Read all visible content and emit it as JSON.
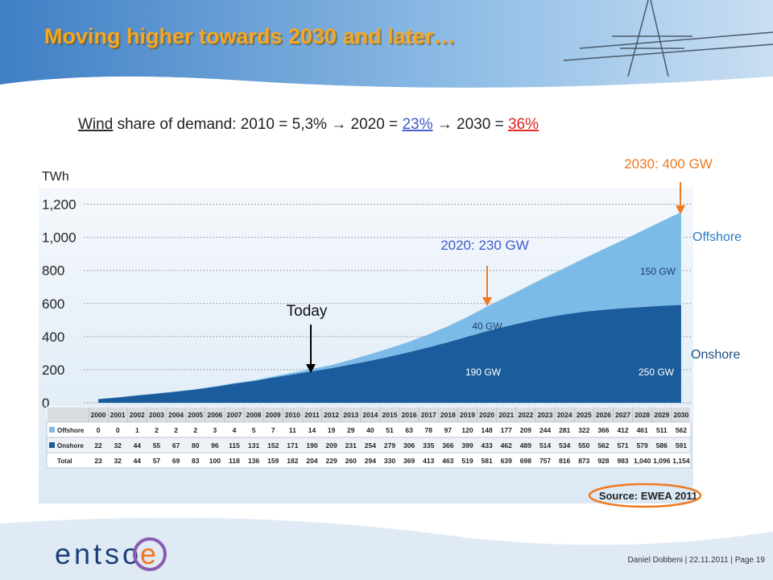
{
  "header": {
    "title": "Moving higher towards 2030 and later…"
  },
  "subtitle": [
    "Wind",
    " share of demand: 2010 = 5,3% ",
    "→",
    " 2020 = ",
    "23%",
    " ",
    "→",
    " 2030 = ",
    "36%"
  ],
  "chart_data": {
    "type": "stacked_area",
    "y_label": "TWh",
    "categories": [
      "2000",
      "2001",
      "2002",
      "2003",
      "2004",
      "2005",
      "2006",
      "2007",
      "2008",
      "2009",
      "2010",
      "2011",
      "2012",
      "2013",
      "2014",
      "2015",
      "2016",
      "2017",
      "2018",
      "2019",
      "2020",
      "2021",
      "2022",
      "2023",
      "2024",
      "2025",
      "2026",
      "2027",
      "2028",
      "2029",
      "2030"
    ],
    "series": [
      {
        "name": "Offshore",
        "color": "#7cbbe8",
        "values": [
          0,
          0,
          1,
          2,
          2,
          2,
          3,
          4,
          5,
          7,
          11,
          14,
          19,
          29,
          40,
          51,
          63,
          78,
          97,
          120,
          148,
          177,
          209,
          244,
          281,
          322,
          366,
          412,
          461,
          511,
          562
        ]
      },
      {
        "name": "Onshore",
        "color": "#1b5c9c",
        "values": [
          22,
          32,
          44,
          55,
          67,
          80,
          96,
          115,
          131,
          152,
          171,
          190,
          209,
          231,
          254,
          279,
          306,
          335,
          366,
          399,
          433,
          462,
          489,
          514,
          534,
          550,
          562,
          571,
          579,
          586,
          591
        ]
      }
    ],
    "total": {
      "name": "Total",
      "values": [
        23,
        32,
        44,
        57,
        69,
        83,
        100,
        118,
        136,
        159,
        182,
        204,
        229,
        260,
        294,
        330,
        369,
        413,
        463,
        519,
        581,
        639,
        698,
        757,
        816,
        873,
        928,
        983,
        1040,
        1096,
        1154
      ],
      "value_labels": [
        "23",
        "32",
        "44",
        "57",
        "69",
        "83",
        "100",
        "118",
        "136",
        "159",
        "182",
        "204",
        "229",
        "260",
        "294",
        "330",
        "369",
        "413",
        "463",
        "519",
        "581",
        "639",
        "698",
        "757",
        "816",
        "873",
        "928",
        "983",
        "1,040",
        "1,096",
        "1,154"
      ]
    },
    "ylim": [
      0,
      1300
    ],
    "yticks": [
      0,
      200,
      400,
      600,
      800,
      {
        "value": 1000,
        "label": "1,000"
      },
      {
        "value": 1200,
        "label": "1,200"
      }
    ],
    "grid": true,
    "annotations": [
      "Today",
      "2020: 230 GW",
      "2030: 400 GW",
      "40 GW",
      "190 GW",
      "150 GW",
      "250 GW"
    ],
    "source": "Source: EWEA 2011"
  },
  "footer": {
    "logo": [
      "entso",
      "e"
    ],
    "text": "Daniel Dobbeni | 22.11.2011 | Page 19"
  }
}
